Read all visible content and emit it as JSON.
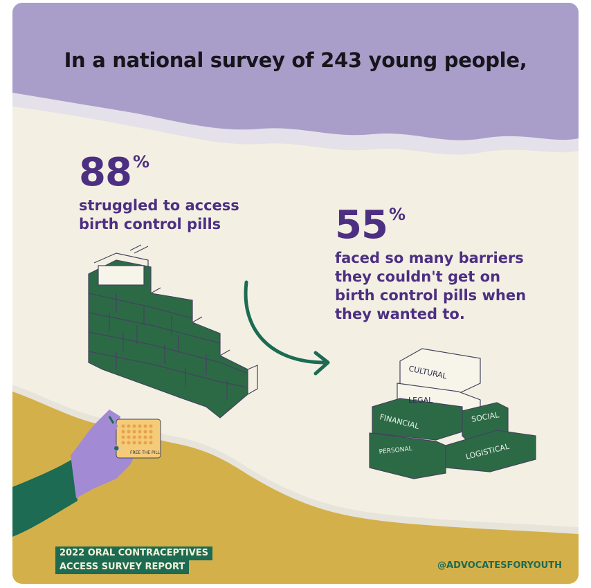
{
  "headline": "In a national survey of 243 young people,",
  "stats": [
    {
      "value": "88",
      "unit": "%",
      "description": [
        "struggled to access",
        "birth control pills"
      ]
    },
    {
      "value": "55",
      "unit": "%",
      "description": [
        "faced so many barriers",
        "they couldn't get on",
        "birth control pills when",
        "they wanted to."
      ]
    }
  ],
  "barriers": [
    "CULTURAL",
    "LEGAL",
    "FINANCIAL",
    "SOCIAL",
    "PERSONAL",
    "LOGISTICAL"
  ],
  "pill_pack_label": "FREE THE PILL",
  "report_tag": [
    "2022 ORAL CONTRACEPTIVES",
    "ACCESS SURVEY REPORT"
  ],
  "handle": "@ADVOCATESFORYOUTH",
  "colors": {
    "purple": "#4d2f82",
    "green": "#1c6b52",
    "lavender": "#a99ec9",
    "mustard": "#d4b04a",
    "paper": "#f3f0e3"
  }
}
